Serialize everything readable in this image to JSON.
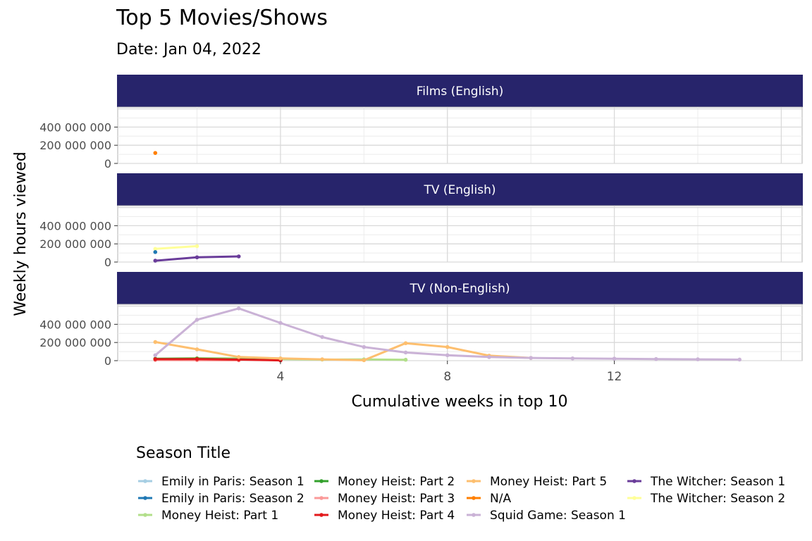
{
  "chart_data": {
    "type": "line",
    "title": "Top 5 Movies/Shows",
    "subtitle": "Date: Jan 04, 2022",
    "xlabel": "Cumulative weeks in top 10",
    "ylabel": "Weekly hours viewed",
    "xlim": [
      0.1,
      16.5
    ],
    "ylim": [
      0,
      620000000
    ],
    "x_ticks": [
      4,
      8,
      12
    ],
    "y_ticks": [
      0,
      200000000,
      400000000
    ],
    "y_tick_labels": [
      "0",
      "200 000 000",
      "400 000 000"
    ],
    "grid": true,
    "legend": {
      "title": "Season Title",
      "position": "bottom",
      "entries": [
        {
          "name": "Emily in Paris: Season 1",
          "color": "#A6CEE3"
        },
        {
          "name": "Emily in Paris: Season 2",
          "color": "#1F78B4"
        },
        {
          "name": "Money Heist: Part 1",
          "color": "#B2DF8A"
        },
        {
          "name": "Money Heist: Part 2",
          "color": "#33A02C"
        },
        {
          "name": "Money Heist: Part 3",
          "color": "#FB9A99"
        },
        {
          "name": "Money Heist: Part 4",
          "color": "#E31A1C"
        },
        {
          "name": "Money Heist: Part 5",
          "color": "#FDBF6F"
        },
        {
          "name": "N/A",
          "color": "#FF7F00"
        },
        {
          "name": "Squid Game: Season 1",
          "color": "#CAB2D6"
        },
        {
          "name": "The Witcher: Season 1",
          "color": "#6A3D9A"
        },
        {
          "name": "The Witcher: Season 2",
          "color": "#FFFF99"
        }
      ]
    },
    "panels": [
      {
        "label": "Films (English)",
        "series": [
          {
            "name": "N/A",
            "color": "#FF7F00",
            "x": [
              1
            ],
            "y": [
              115000000
            ]
          }
        ]
      },
      {
        "label": "TV (English)",
        "series": [
          {
            "name": "The Witcher: Season 2",
            "color": "#FFFF99",
            "x": [
              1,
              2
            ],
            "y": [
              145000000,
              175000000
            ]
          },
          {
            "name": "Emily in Paris: Season 2",
            "color": "#1F78B4",
            "x": [
              1
            ],
            "y": [
              110000000
            ]
          },
          {
            "name": "The Witcher: Season 1",
            "color": "#6A3D9A",
            "x": [
              1,
              2,
              3
            ],
            "y": [
              15000000,
              52000000,
              62000000
            ]
          }
        ]
      },
      {
        "label": "TV (Non-English)",
        "series": [
          {
            "name": "Money Heist: Part 1",
            "color": "#B2DF8A",
            "x": [
              1,
              2,
              3,
              4,
              5,
              6,
              7
            ],
            "y": [
              22000000,
              28000000,
              25000000,
              18000000,
              12000000,
              14000000,
              10000000
            ]
          },
          {
            "name": "Money Heist: Part 2",
            "color": "#33A02C",
            "x": [
              1,
              2,
              3,
              4
            ],
            "y": [
              20000000,
              22000000,
              15000000,
              6000000
            ]
          },
          {
            "name": "Money Heist: Part 3",
            "color": "#FB9A99",
            "x": [
              1,
              2,
              3
            ],
            "y": [
              8000000,
              6000000,
              4000000
            ]
          },
          {
            "name": "Money Heist: Part 4",
            "color": "#E31A1C",
            "x": [
              1,
              2,
              3,
              4
            ],
            "y": [
              16000000,
              17000000,
              12000000,
              3000000
            ]
          },
          {
            "name": "Money Heist: Part 5",
            "color": "#FDBF6F",
            "x": [
              1,
              2,
              3,
              4,
              5,
              6,
              7,
              8,
              9,
              10
            ],
            "y": [
              205000000,
              125000000,
              40000000,
              25000000,
              15000000,
              5000000,
              192000000,
              150000000,
              55000000,
              30000000
            ]
          },
          {
            "name": "Squid Game: Season 1",
            "color": "#CAB2D6",
            "x": [
              1,
              2,
              3,
              4,
              5,
              6,
              7,
              8,
              9,
              10,
              11,
              12,
              13,
              14,
              15
            ],
            "y": [
              60000000,
              450000000,
              575000000,
              415000000,
              260000000,
              150000000,
              90000000,
              60000000,
              40000000,
              30000000,
              25000000,
              22000000,
              18000000,
              15000000,
              12000000
            ]
          }
        ]
      }
    ]
  }
}
